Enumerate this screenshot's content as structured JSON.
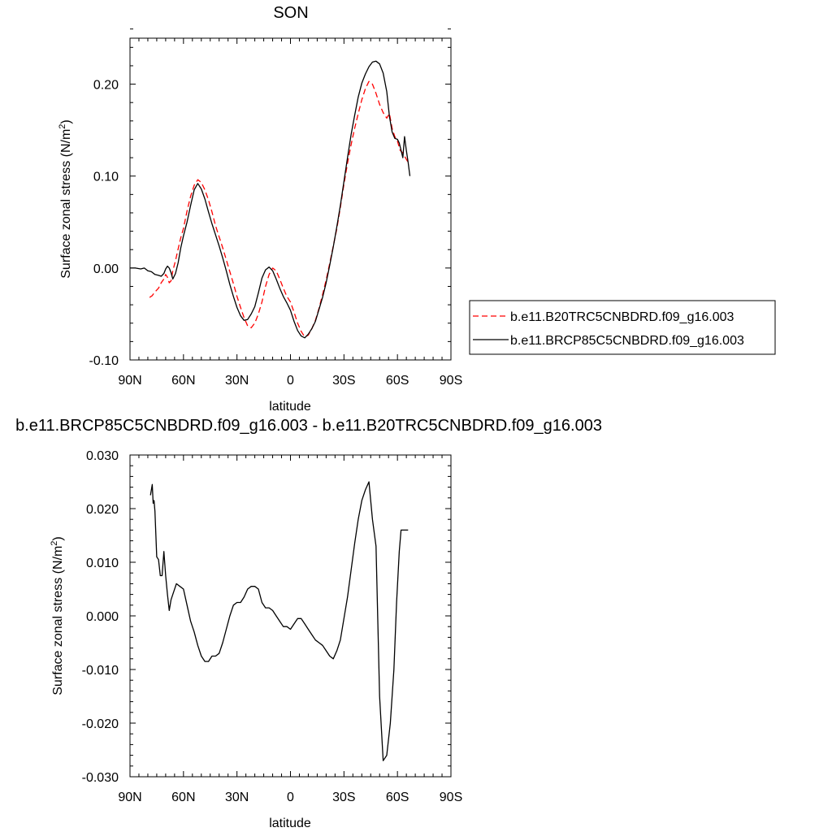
{
  "chart_data": [
    {
      "type": "line",
      "title": "SON",
      "xlabel": "latitude",
      "ylabel": "Surface zonal stress (N/m",
      "ylabel_sup": "2",
      "ylabel_tail": ")",
      "xlim": [
        90,
        -90
      ],
      "ylim": [
        -0.1,
        0.25
      ],
      "xticks": [
        90,
        60,
        30,
        0,
        -30,
        -60,
        -90
      ],
      "xtick_labels": [
        "90N",
        "60N",
        "30N",
        "0",
        "30S",
        "60S",
        "90S"
      ],
      "yticks": [
        -0.1,
        0.0,
        0.1,
        0.2
      ],
      "ytick_labels": [
        "-0.10",
        "0.00",
        "0.10",
        "0.20"
      ],
      "legend_position": "right",
      "series": [
        {
          "name": "b.e11.B20TRC5CNBDRD.f09_g16.003",
          "color": "#ff0000",
          "dash": "dashed",
          "x": [
            79,
            77.5,
            76,
            74,
            72.5,
            71,
            70,
            69,
            68,
            67,
            66,
            64.5,
            63,
            61.5,
            60,
            58,
            56,
            54,
            52,
            50,
            48,
            46,
            44,
            42,
            40,
            38,
            36,
            34,
            32,
            30,
            28,
            26,
            24,
            22,
            20,
            18,
            16,
            14,
            12,
            10,
            8,
            6,
            4,
            2,
            0,
            -2,
            -4,
            -6,
            -8,
            -10,
            -12,
            -14,
            -16,
            -18,
            -20,
            -22,
            -24,
            -26,
            -28,
            -30,
            -32,
            -34,
            -36,
            -38,
            -40,
            -42,
            -44,
            -46,
            -48,
            -50,
            -52,
            -54,
            -55.5,
            -57,
            -58.5,
            -60,
            -61.5,
            -63,
            -64.5,
            -66
          ],
          "y": [
            -0.032,
            -0.03,
            -0.026,
            -0.022,
            -0.016,
            -0.012,
            -0.007,
            -0.01,
            -0.016,
            -0.014,
            -0.003,
            0.008,
            0.021,
            0.033,
            0.043,
            0.062,
            0.078,
            0.09,
            0.096,
            0.093,
            0.085,
            0.074,
            0.061,
            0.046,
            0.034,
            0.022,
            0.009,
            -0.004,
            -0.017,
            -0.031,
            -0.043,
            -0.054,
            -0.063,
            -0.065,
            -0.06,
            -0.05,
            -0.037,
            -0.02,
            -0.007,
            0.0,
            -0.003,
            -0.012,
            -0.022,
            -0.031,
            -0.037,
            -0.048,
            -0.06,
            -0.069,
            -0.075,
            -0.073,
            -0.066,
            -0.057,
            -0.044,
            -0.029,
            -0.013,
            0.005,
            0.024,
            0.043,
            0.066,
            0.091,
            0.114,
            0.134,
            0.152,
            0.168,
            0.183,
            0.195,
            0.203,
            0.2,
            0.19,
            0.178,
            0.169,
            0.163,
            0.168,
            0.152,
            0.143,
            0.138,
            0.128,
            0.125,
            0.12,
            0.115
          ]
        },
        {
          "name": "b.e11.BRCP85C5CNBDRD.f09_g16.003",
          "color": "#000000",
          "dash": "solid",
          "x": [
            90,
            87,
            84,
            82,
            80,
            78,
            76,
            74,
            72.5,
            71,
            70,
            69,
            68,
            67,
            66,
            64.5,
            63,
            61.5,
            60,
            58,
            56,
            54,
            52,
            50,
            48,
            46,
            44,
            42,
            40,
            38,
            36,
            34,
            32,
            30,
            28,
            26,
            24,
            22,
            20,
            18,
            16,
            14,
            12,
            10,
            8,
            6,
            4,
            2,
            0,
            -2,
            -4,
            -6,
            -8,
            -10,
            -12,
            -14,
            -16,
            -18,
            -20,
            -22,
            -24,
            -26,
            -28,
            -30,
            -32,
            -34,
            -36,
            -38,
            -40,
            -42,
            -44,
            -46,
            -48,
            -50,
            -52,
            -54,
            -55.5,
            -57,
            -58.5,
            -60,
            -61,
            -62,
            -63,
            -64,
            -65,
            -66,
            -67
          ],
          "y": [
            0.0,
            0.0,
            -0.001,
            0.0,
            -0.003,
            -0.004,
            -0.007,
            -0.008,
            -0.009,
            -0.006,
            -0.001,
            0.002,
            0.0,
            -0.005,
            -0.012,
            -0.006,
            0.006,
            0.022,
            0.035,
            0.05,
            0.068,
            0.085,
            0.092,
            0.086,
            0.075,
            0.061,
            0.048,
            0.036,
            0.024,
            0.011,
            -0.003,
            -0.018,
            -0.031,
            -0.043,
            -0.052,
            -0.057,
            -0.056,
            -0.05,
            -0.042,
            -0.027,
            -0.011,
            -0.002,
            0.001,
            -0.003,
            -0.012,
            -0.022,
            -0.031,
            -0.038,
            -0.046,
            -0.058,
            -0.068,
            -0.074,
            -0.076,
            -0.072,
            -0.066,
            -0.058,
            -0.045,
            -0.032,
            -0.016,
            0.003,
            0.023,
            0.045,
            0.068,
            0.094,
            0.12,
            0.145,
            0.166,
            0.186,
            0.201,
            0.211,
            0.219,
            0.224,
            0.225,
            0.222,
            0.212,
            0.192,
            0.165,
            0.148,
            0.141,
            0.14,
            0.136,
            0.128,
            0.12,
            0.143,
            0.128,
            0.115,
            0.1
          ]
        }
      ]
    },
    {
      "type": "line",
      "title": "b.e11.BRCP85C5CNBDRD.f09_g16.003 - b.e11.B20TRC5CNBDRD.f09_g16.003",
      "xlabel": "latitude",
      "ylabel": "Surface zonal stress (N/m",
      "ylabel_sup": "2",
      "ylabel_tail": ")",
      "xlim": [
        90,
        -90
      ],
      "ylim": [
        -0.03,
        0.03
      ],
      "xticks": [
        90,
        60,
        30,
        0,
        -30,
        -60,
        -90
      ],
      "xtick_labels": [
        "90N",
        "60N",
        "30N",
        "0",
        "30S",
        "60S",
        "90S"
      ],
      "yticks": [
        -0.03,
        -0.02,
        -0.01,
        0.0,
        0.01,
        0.02,
        0.03
      ],
      "ytick_labels": [
        "-0.030",
        "-0.020",
        "-0.010",
        "0.000",
        "0.010",
        "0.020",
        "0.030"
      ],
      "series": [
        {
          "color": "#000000",
          "dash": "solid",
          "x": [
            78.5,
            77.5,
            77,
            76.5,
            76,
            75,
            74,
            73,
            72,
            71,
            70,
            69,
            68,
            67,
            66,
            64,
            62,
            60,
            58,
            56,
            54,
            52,
            50,
            48,
            46,
            44,
            42,
            40,
            38,
            36,
            34,
            32,
            30,
            28,
            26,
            24,
            22,
            20,
            18,
            16,
            14,
            12,
            10,
            8,
            6,
            4,
            2,
            0,
            -2,
            -4,
            -6,
            -8,
            -10,
            -12,
            -14,
            -16,
            -18,
            -20,
            -22,
            -24,
            -26,
            -28,
            -30,
            -32,
            -34,
            -36,
            -38,
            -40,
            -42,
            -44,
            -46,
            -48,
            -50,
            -52,
            -54,
            -56,
            -58,
            -59.5,
            -61,
            -62,
            -63,
            -64,
            -65,
            -66
          ],
          "y": [
            0.0225,
            0.0245,
            0.021,
            0.0215,
            0.0195,
            0.011,
            0.0105,
            0.0075,
            0.0075,
            0.012,
            0.0075,
            0.004,
            0.001,
            0.003,
            0.004,
            0.006,
            0.0055,
            0.005,
            0.002,
            -0.001,
            -0.003,
            -0.0055,
            -0.0075,
            -0.0085,
            -0.0085,
            -0.0075,
            -0.0075,
            -0.007,
            -0.005,
            -0.0025,
            0.0,
            0.002,
            0.0025,
            0.0025,
            0.0035,
            0.005,
            0.0055,
            0.0055,
            0.005,
            0.0025,
            0.0015,
            0.0015,
            0.001,
            0.0,
            -0.001,
            -0.002,
            -0.002,
            -0.0025,
            -0.0015,
            -0.0005,
            -0.0005,
            -0.0015,
            -0.0025,
            -0.0035,
            -0.0045,
            -0.005,
            -0.0055,
            -0.0065,
            -0.0075,
            -0.008,
            -0.0065,
            -0.0045,
            -0.0005,
            0.0035,
            0.0085,
            0.0135,
            0.018,
            0.0215,
            0.0235,
            0.025,
            0.018,
            0.013,
            -0.015,
            -0.027,
            -0.026,
            -0.02,
            -0.01,
            0.0025,
            0.012,
            0.016,
            0.016,
            0.016,
            0.016,
            0.016
          ]
        }
      ]
    }
  ]
}
